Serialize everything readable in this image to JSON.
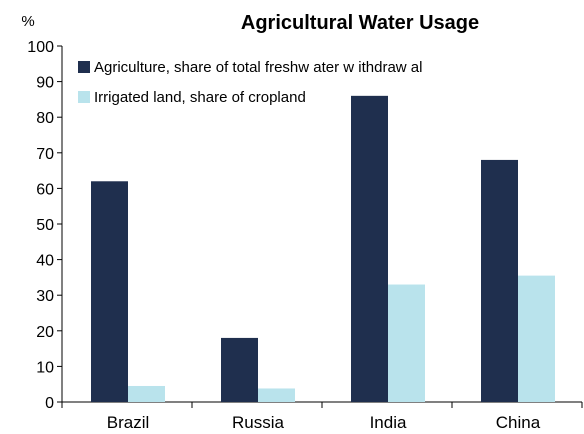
{
  "chart_data": {
    "type": "bar",
    "title": "Agricultural Water Usage",
    "ylabel": "%",
    "xlabel": "",
    "ylim": [
      0,
      100
    ],
    "yticks": [
      0,
      10,
      20,
      30,
      40,
      50,
      60,
      70,
      80,
      90,
      100
    ],
    "categories": [
      "Brazil",
      "Russia",
      "India",
      "China"
    ],
    "series": [
      {
        "name": "Agriculture, share of total freshw ater w ithdraw al",
        "color": "#1f2f4e",
        "values": [
          62,
          18,
          86,
          68
        ]
      },
      {
        "name": "Irrigated land, share of cropland",
        "color": "#b9e3ec",
        "values": [
          4.5,
          3.8,
          33,
          35.5
        ]
      }
    ],
    "legend_position": "top-left",
    "grid": false
  }
}
